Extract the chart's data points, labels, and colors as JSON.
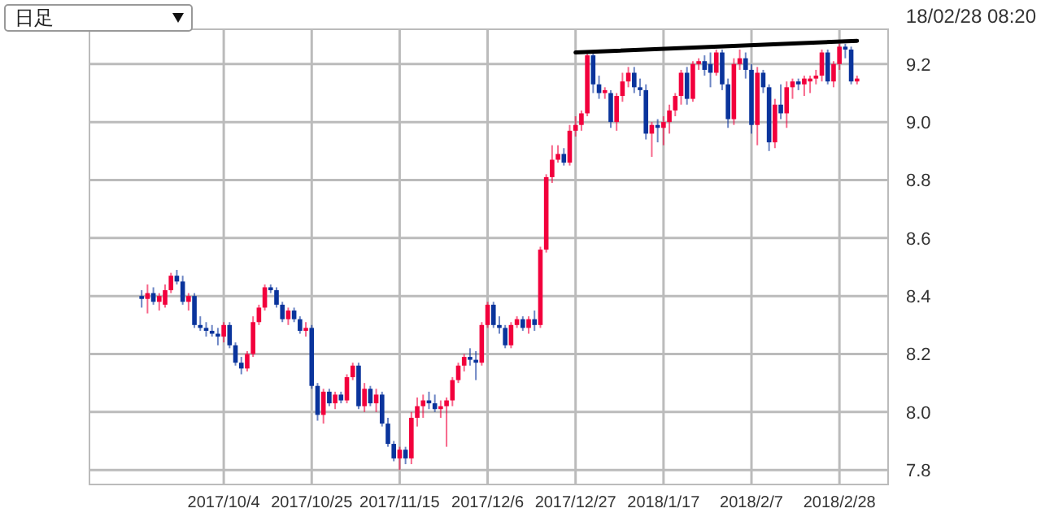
{
  "chart_data": {
    "type": "candlestick",
    "annotations": [
      "日足",
      "18/02/28 08:20"
    ],
    "categories": [
      null,
      null,
      null,
      null,
      null,
      null,
      null,
      null,
      null,
      null,
      null,
      null,
      null,
      null,
      "2017/10/4",
      null,
      null,
      null,
      null,
      null,
      null,
      null,
      null,
      null,
      null,
      null,
      null,
      null,
      null,
      "2017/10/25",
      null,
      null,
      null,
      null,
      null,
      null,
      null,
      null,
      null,
      null,
      null,
      null,
      null,
      null,
      "2017/11/15",
      null,
      null,
      null,
      null,
      null,
      null,
      null,
      null,
      null,
      null,
      null,
      null,
      null,
      null,
      "2017/12/6",
      null,
      null,
      null,
      null,
      null,
      null,
      null,
      null,
      null,
      null,
      null,
      null,
      null,
      null,
      "2017/12/27",
      null,
      null,
      null,
      null,
      null,
      null,
      null,
      null,
      null,
      null,
      null,
      null,
      null,
      null,
      "2018/1/17",
      null,
      null,
      null,
      null,
      null,
      null,
      null,
      null,
      null,
      null,
      null,
      null,
      null,
      null,
      "2018/2/7",
      null,
      null,
      null,
      null,
      null,
      null,
      null,
      null,
      null,
      null,
      null,
      null,
      null,
      null,
      "2018/2/28",
      null,
      null,
      null
    ],
    "ohlc": [
      [
        8.4,
        8.42,
        8.36,
        8.39
      ],
      [
        8.39,
        8.44,
        8.34,
        8.41
      ],
      [
        8.41,
        8.43,
        8.37,
        8.38
      ],
      [
        8.38,
        8.41,
        8.35,
        8.4
      ],
      [
        8.37,
        8.44,
        8.36,
        8.42
      ],
      [
        8.42,
        8.48,
        8.41,
        8.47
      ],
      [
        8.47,
        8.49,
        8.44,
        8.45
      ],
      [
        8.45,
        8.47,
        8.37,
        8.38
      ],
      [
        8.38,
        8.41,
        8.35,
        8.4
      ],
      [
        8.4,
        8.41,
        8.29,
        8.3
      ],
      [
        8.3,
        8.33,
        8.28,
        8.29
      ],
      [
        8.29,
        8.31,
        8.26,
        8.28
      ],
      [
        8.28,
        8.3,
        8.26,
        8.27
      ],
      [
        8.27,
        8.29,
        8.23,
        8.26
      ],
      [
        8.26,
        8.31,
        8.24,
        8.3
      ],
      [
        8.3,
        8.31,
        8.22,
        8.23
      ],
      [
        8.23,
        8.24,
        8.16,
        8.17
      ],
      [
        8.17,
        8.19,
        8.13,
        8.15
      ],
      [
        8.15,
        8.21,
        8.14,
        8.2
      ],
      [
        8.2,
        8.33,
        8.19,
        8.31
      ],
      [
        8.31,
        8.37,
        8.3,
        8.36
      ],
      [
        8.36,
        8.44,
        8.35,
        8.43
      ],
      [
        8.43,
        8.44,
        8.41,
        8.42
      ],
      [
        8.42,
        8.43,
        8.36,
        8.37
      ],
      [
        8.37,
        8.38,
        8.31,
        8.32
      ],
      [
        8.32,
        8.36,
        8.3,
        8.35
      ],
      [
        8.35,
        8.36,
        8.31,
        8.32
      ],
      [
        8.32,
        8.33,
        8.27,
        8.28
      ],
      [
        8.28,
        8.31,
        8.26,
        8.29
      ],
      [
        8.29,
        8.3,
        8.08,
        8.09
      ],
      [
        8.09,
        8.1,
        7.97,
        7.99
      ],
      [
        7.99,
        8.08,
        7.96,
        8.07
      ],
      [
        8.07,
        8.08,
        8.02,
        8.03
      ],
      [
        8.03,
        8.07,
        8.01,
        8.06
      ],
      [
        8.06,
        8.07,
        8.03,
        8.04
      ],
      [
        8.04,
        8.13,
        8.03,
        8.12
      ],
      [
        8.12,
        8.17,
        8.11,
        8.16
      ],
      [
        8.16,
        8.17,
        8.01,
        8.02
      ],
      [
        8.02,
        8.1,
        8.0,
        8.08
      ],
      [
        8.08,
        8.09,
        8.02,
        8.03
      ],
      [
        8.03,
        8.08,
        8.0,
        8.06
      ],
      [
        8.06,
        8.07,
        7.95,
        7.96
      ],
      [
        7.96,
        7.98,
        7.88,
        7.89
      ],
      [
        7.89,
        7.9,
        7.83,
        7.84
      ],
      [
        7.84,
        7.88,
        7.8,
        7.87
      ],
      [
        7.87,
        7.88,
        7.82,
        7.84
      ],
      [
        7.84,
        8.0,
        7.82,
        7.98
      ],
      [
        7.98,
        8.05,
        7.95,
        8.02
      ],
      [
        8.02,
        8.06,
        7.98,
        8.04
      ],
      [
        8.04,
        8.07,
        8.01,
        8.03
      ],
      [
        8.03,
        8.06,
        8.0,
        8.01
      ],
      [
        8.01,
        8.04,
        7.98,
        8.02
      ],
      [
        8.02,
        8.05,
        7.88,
        8.04
      ],
      [
        8.04,
        8.12,
        8.02,
        8.11
      ],
      [
        8.11,
        8.17,
        8.1,
        8.16
      ],
      [
        8.16,
        8.2,
        8.14,
        8.19
      ],
      [
        8.19,
        8.22,
        8.16,
        8.18
      ],
      [
        8.18,
        8.21,
        8.11,
        8.17
      ],
      [
        8.17,
        8.31,
        8.16,
        8.3
      ],
      [
        8.3,
        8.38,
        8.29,
        8.37
      ],
      [
        8.37,
        8.38,
        8.29,
        8.3
      ],
      [
        8.3,
        8.33,
        8.27,
        8.29
      ],
      [
        8.29,
        8.3,
        8.22,
        8.23
      ],
      [
        8.23,
        8.31,
        8.22,
        8.3
      ],
      [
        8.3,
        8.33,
        8.29,
        8.32
      ],
      [
        8.32,
        8.33,
        8.28,
        8.29
      ],
      [
        8.29,
        8.33,
        8.27,
        8.32
      ],
      [
        8.32,
        8.35,
        8.28,
        8.3
      ],
      [
        8.3,
        8.57,
        8.29,
        8.56
      ],
      [
        8.56,
        8.82,
        8.55,
        8.81
      ],
      [
        8.81,
        8.92,
        8.79,
        8.87
      ],
      [
        8.87,
        8.92,
        8.86,
        8.89
      ],
      [
        8.89,
        8.91,
        8.85,
        8.86
      ],
      [
        8.86,
        8.99,
        8.85,
        8.97
      ],
      [
        8.97,
        9.02,
        8.95,
        8.99
      ],
      [
        8.99,
        9.04,
        8.97,
        9.03
      ],
      [
        9.03,
        9.24,
        9.02,
        9.23
      ],
      [
        9.23,
        9.24,
        9.1,
        9.13
      ],
      [
        9.13,
        9.16,
        9.08,
        9.1
      ],
      [
        9.1,
        9.12,
        9.08,
        9.11
      ],
      [
        9.1,
        9.11,
        8.98,
        9.0
      ],
      [
        9.0,
        9.1,
        8.97,
        9.09
      ],
      [
        9.09,
        9.17,
        9.07,
        9.14
      ],
      [
        9.14,
        9.19,
        9.12,
        9.17
      ],
      [
        9.17,
        9.19,
        9.1,
        9.12
      ],
      [
        9.12,
        9.15,
        9.09,
        9.11
      ],
      [
        9.11,
        9.13,
        8.94,
        8.96
      ],
      [
        8.96,
        9.0,
        8.88,
        8.99
      ],
      [
        8.99,
        9.01,
        8.93,
        8.98
      ],
      [
        8.98,
        9.02,
        8.92,
        9.0
      ],
      [
        9.0,
        9.06,
        8.96,
        9.04
      ],
      [
        9.04,
        9.1,
        9.02,
        9.09
      ],
      [
        9.09,
        9.18,
        9.06,
        9.17
      ],
      [
        9.17,
        9.19,
        9.06,
        9.08
      ],
      [
        9.08,
        9.21,
        9.07,
        9.2
      ],
      [
        9.2,
        9.22,
        9.18,
        9.21
      ],
      [
        9.21,
        9.23,
        9.16,
        9.18
      ],
      [
        9.2,
        9.24,
        9.12,
        9.17
      ],
      [
        9.17,
        9.25,
        9.16,
        9.24
      ],
      [
        9.24,
        9.25,
        9.11,
        9.13
      ],
      [
        9.13,
        9.15,
        8.98,
        9.01
      ],
      [
        9.01,
        9.22,
        8.99,
        9.2
      ],
      [
        9.2,
        9.25,
        9.18,
        9.22
      ],
      [
        9.22,
        9.24,
        9.15,
        9.18
      ],
      [
        9.18,
        9.2,
        8.96,
        8.99
      ],
      [
        8.99,
        9.19,
        8.92,
        9.17
      ],
      [
        9.17,
        9.18,
        9.1,
        9.12
      ],
      [
        9.12,
        9.13,
        8.9,
        8.93
      ],
      [
        8.93,
        9.08,
        8.91,
        9.06
      ],
      [
        9.06,
        9.13,
        9.01,
        9.03
      ],
      [
        9.03,
        9.14,
        8.98,
        9.12
      ],
      [
        9.12,
        9.15,
        9.08,
        9.14
      ],
      [
        9.14,
        9.15,
        9.11,
        9.13
      ],
      [
        9.13,
        9.16,
        9.09,
        9.15
      ],
      [
        9.14,
        9.16,
        9.1,
        9.15
      ],
      [
        9.15,
        9.18,
        9.13,
        9.16
      ],
      [
        9.16,
        9.25,
        9.14,
        9.24
      ],
      [
        9.24,
        9.25,
        9.13,
        9.14
      ],
      [
        9.14,
        9.21,
        9.12,
        9.2
      ],
      [
        9.2,
        9.27,
        9.18,
        9.26
      ],
      [
        9.26,
        9.27,
        9.22,
        9.25
      ],
      [
        9.25,
        9.26,
        9.13,
        9.14
      ],
      [
        9.14,
        9.16,
        9.13,
        9.15
      ]
    ],
    "colors": [
      "#0a349c",
      "#f2003c",
      "#0a349c",
      "#f2003c",
      "#f2003c",
      "#f2003c",
      "#0a349c",
      "#0a349c",
      "#f2003c",
      "#0a349c",
      "#0a349c",
      "#0a349c",
      "#0a349c",
      "#0a349c",
      "#f2003c",
      "#0a349c",
      "#0a349c",
      "#0a349c",
      "#f2003c",
      "#f2003c",
      "#f2003c",
      "#f2003c",
      "#0a349c",
      "#0a349c",
      "#0a349c",
      "#f2003c",
      "#0a349c",
      "#0a349c",
      "#f2003c",
      "#0a349c",
      "#0a349c",
      "#f2003c",
      "#0a349c",
      "#f2003c",
      "#0a349c",
      "#f2003c",
      "#f2003c",
      "#0a349c",
      "#f2003c",
      "#0a349c",
      "#f2003c",
      "#0a349c",
      "#0a349c",
      "#0a349c",
      "#f2003c",
      "#0a349c",
      "#f2003c",
      "#f2003c",
      "#f2003c",
      "#0a349c",
      "#0a349c",
      "#f2003c",
      "#f2003c",
      "#f2003c",
      "#f2003c",
      "#f2003c",
      "#0a349c",
      "#0a349c",
      "#f2003c",
      "#f2003c",
      "#0a349c",
      "#0a349c",
      "#0a349c",
      "#f2003c",
      "#f2003c",
      "#0a349c",
      "#f2003c",
      "#0a349c",
      "#f2003c",
      "#f2003c",
      "#f2003c",
      "#f2003c",
      "#0a349c",
      "#f2003c",
      "#f2003c",
      "#f2003c",
      "#f2003c",
      "#0a349c",
      "#0a349c",
      "#f2003c",
      "#0a349c",
      "#f2003c",
      "#f2003c",
      "#f2003c",
      "#0a349c",
      "#0a349c",
      "#0a349c",
      "#f2003c",
      "#0a349c",
      "#f2003c",
      "#f2003c",
      "#f2003c",
      "#f2003c",
      "#0a349c",
      "#f2003c",
      "#f2003c",
      "#0a349c",
      "#0a349c",
      "#f2003c",
      "#0a349c",
      "#0a349c",
      "#f2003c",
      "#f2003c",
      "#0a349c",
      "#0a349c",
      "#f2003c",
      "#0a349c",
      "#0a349c",
      "#f2003c",
      "#0a349c",
      "#f2003c",
      "#f2003c",
      "#0a349c",
      "#f2003c",
      "#f2003c",
      "#f2003c",
      "#f2003c",
      "#0a349c",
      "#f2003c",
      "#f2003c",
      "#0a349c",
      "#0a349c",
      "#f2003c"
    ],
    "series": [
      {
        "type": "line",
        "color": "#000000",
        "values": [
          null,
          null,
          null,
          null,
          null,
          null,
          null,
          null,
          null,
          null,
          null,
          null,
          null,
          null,
          null,
          null,
          null,
          null,
          null,
          null,
          null,
          null,
          null,
          null,
          null,
          null,
          null,
          null,
          null,
          null,
          null,
          null,
          null,
          null,
          null,
          null,
          null,
          null,
          null,
          null,
          null,
          null,
          null,
          null,
          null,
          null,
          null,
          null,
          null,
          null,
          null,
          null,
          null,
          null,
          null,
          null,
          null,
          null,
          null,
          null,
          null,
          null,
          null,
          null,
          null,
          null,
          null,
          null,
          null,
          null,
          null,
          null,
          null,
          null,
          9.24,
          null,
          null,
          null,
          null,
          null,
          null,
          null,
          null,
          null,
          null,
          null,
          null,
          null,
          null,
          null,
          null,
          null,
          null,
          null,
          null,
          null,
          null,
          null,
          null,
          null,
          null,
          null,
          null,
          null,
          null,
          null,
          null,
          null,
          null,
          null,
          null,
          null,
          null,
          null,
          null,
          null,
          null,
          null,
          null,
          null,
          null,
          null,
          9.28
        ]
      }
    ],
    "ylim": [
      7.75,
      9.32
    ],
    "yticks": [
      7.8,
      {
        "value": 8,
        "label": "8.0"
      },
      8.2,
      8.4,
      8.6,
      8.8,
      {
        "value": 9,
        "label": "9.0"
      },
      9.2
    ],
    "grid": true
  }
}
